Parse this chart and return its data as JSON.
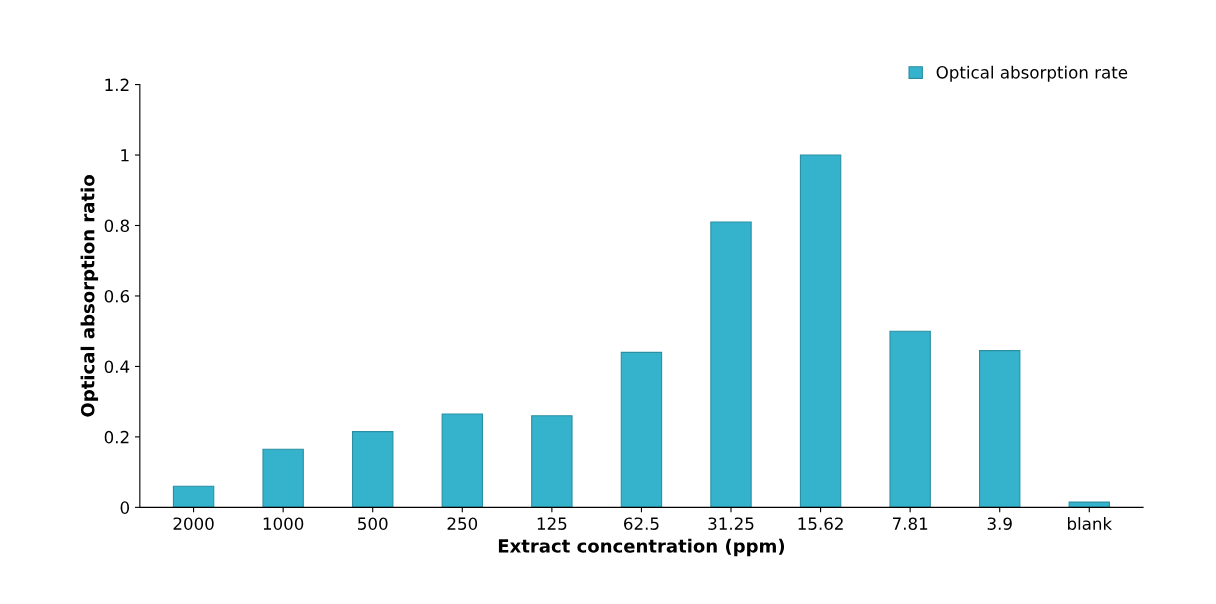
{
  "chart_data": {
    "type": "bar",
    "xlabel": "Extract concentration (ppm)",
    "ylabel": "Optical absorption ratio",
    "categories": [
      "2000",
      "1000",
      "500",
      "250",
      "125",
      "62.5",
      "31.25",
      "15.62",
      "7.81",
      "3.9",
      "blank"
    ],
    "series": [
      {
        "name": "Optical absorption rate",
        "color": "#35b3cc",
        "values": [
          0.06,
          0.165,
          0.215,
          0.265,
          0.26,
          0.44,
          0.81,
          1.0,
          0.5,
          0.445,
          0.015
        ]
      }
    ],
    "ylim": [
      0,
      1.2
    ],
    "yticks": [
      0,
      0.2,
      0.4,
      0.6,
      0.8,
      1,
      1.2
    ],
    "grid": false,
    "legend": "top right"
  }
}
